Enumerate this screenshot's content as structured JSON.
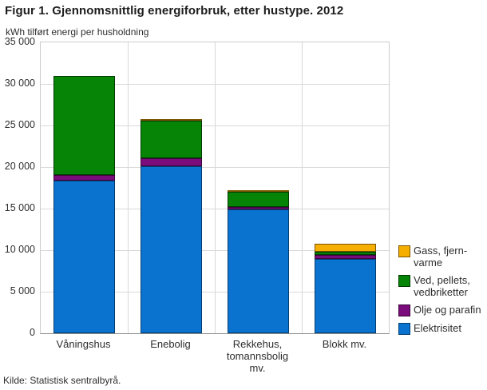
{
  "chart_data": {
    "type": "bar",
    "stacked": true,
    "title": "Figur 1. Gjennomsnittlig energiforbruk, etter hustype. 2012",
    "subtitle": "kWh tilført energi per husholdning",
    "source": "Kilde: Statistisk sentralbyrå.",
    "categories": [
      {
        "name": "Våningshus",
        "label_lines": [
          "Våningshus"
        ]
      },
      {
        "name": "Enebolig",
        "label_lines": [
          "Enebolig"
        ]
      },
      {
        "name": "Rekkehus, tomannsbolig mv.",
        "label_lines": [
          "Rekkehus,",
          "tomannsbolig",
          "mv."
        ]
      },
      {
        "name": "Blokk mv.",
        "label_lines": [
          "Blokk mv."
        ]
      }
    ],
    "series": [
      {
        "name": "Elektrisitet",
        "color": "#0a72cf",
        "border": "#043f73",
        "legend_lines": [
          "Elektrisitet"
        ],
        "values": [
          18400,
          20100,
          14900,
          8900
        ]
      },
      {
        "name": "Olje og parafin",
        "color": "#7b0c7b",
        "border": "#3c053c",
        "legend_lines": [
          "Olje og parafin"
        ],
        "values": [
          600,
          1000,
          300,
          500
        ]
      },
      {
        "name": "Ved, pellets, vedbriketter",
        "color": "#058405",
        "border": "#023a02",
        "legend_lines": [
          "Ved, pellets,",
          "vedbriketter"
        ],
        "values": [
          12000,
          4500,
          1800,
          400
        ]
      },
      {
        "name": "Gass, fjernvarme",
        "color": "#f6ae00",
        "border": "#7a5600",
        "legend_lines": [
          "Gass, fjern-",
          "varme"
        ],
        "values": [
          0,
          200,
          100,
          1000
        ]
      }
    ],
    "legend_order": [
      "Gass, fjernvarme",
      "Ved, pellets, vedbriketter",
      "Olje og parafin",
      "Elektrisitet"
    ],
    "legend_position": "right",
    "grid": true,
    "y_axis": {
      "min": 0,
      "max": 35000,
      "tick_step": 5000,
      "tick_labels": [
        "35 000",
        "30 000",
        "25 000",
        "20 000",
        "15 000",
        "10 000",
        "5 000",
        "0"
      ]
    },
    "totals": [
      31000,
      25800,
      17100,
      10800
    ]
  }
}
